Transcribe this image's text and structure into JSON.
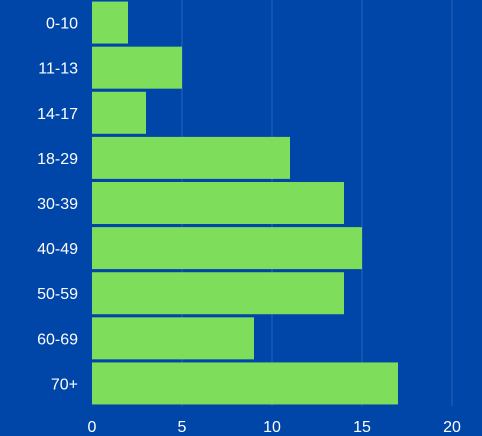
{
  "chart_data": {
    "type": "bar",
    "orientation": "horizontal",
    "title": "",
    "xlabel": "",
    "ylabel": "",
    "categories": [
      "0-10",
      "11-13",
      "14-17",
      "18-29",
      "30-39",
      "40-49",
      "50-59",
      "60-69",
      "70+"
    ],
    "values": [
      2,
      5,
      3,
      11,
      14,
      15,
      14,
      9,
      17
    ],
    "xlim": [
      0,
      20
    ],
    "xticks": [
      "0",
      "5",
      "10",
      "15",
      "20"
    ],
    "grid": true,
    "colors": {
      "background": "#0046a8",
      "bar": "#7ede5c",
      "text": "#ffffff",
      "grid": "#2a63b8"
    }
  }
}
